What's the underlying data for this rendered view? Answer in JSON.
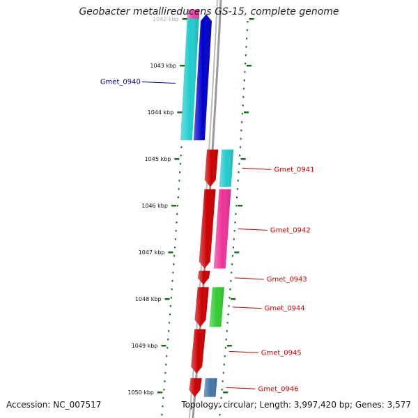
{
  "title": "Geobacter metallireducens GS-15, complete genome",
  "accession": "Accession: NC_007517",
  "summary": "Topology: circular; Length: 3,997,420 bp; Genes: 3,577",
  "ticks": [
    {
      "label": "1042 kbp",
      "kbp": 1042
    },
    {
      "label": "1043 kbp",
      "kbp": 1043
    },
    {
      "label": "1044 kbp",
      "kbp": 1044
    },
    {
      "label": "1045 kbp",
      "kbp": 1045
    },
    {
      "label": "1046 kbp",
      "kbp": 1046
    },
    {
      "label": "1047 kbp",
      "kbp": 1047
    },
    {
      "label": "1048 kbp",
      "kbp": 1048
    },
    {
      "label": "1049 kbp",
      "kbp": 1049
    },
    {
      "label": "1050 kbp",
      "kbp": 1050
    }
  ],
  "genes": [
    {
      "name": "Gmet_0940",
      "strand": "-",
      "start_kbp": 1044.6,
      "end_kbp": 1041.9,
      "color": "#0000cc"
    },
    {
      "name": "Gmet_0941",
      "strand": "+",
      "start_kbp": 1044.8,
      "end_kbp": 1045.6,
      "color": "#cc0000"
    },
    {
      "name": "Gmet_0942",
      "strand": "+",
      "start_kbp": 1045.65,
      "end_kbp": 1047.35,
      "color": "#cc0000"
    },
    {
      "name": "Gmet_0943",
      "strand": "+",
      "start_kbp": 1047.4,
      "end_kbp": 1047.7,
      "color": "#cc0000"
    },
    {
      "name": "Gmet_0944",
      "strand": "+",
      "start_kbp": 1047.75,
      "end_kbp": 1048.6,
      "color": "#cc0000"
    },
    {
      "name": "Gmet_0945",
      "strand": "+",
      "start_kbp": 1048.65,
      "end_kbp": 1049.6,
      "color": "#cc0000"
    },
    {
      "name": "Gmet_0946",
      "strand": "+",
      "start_kbp": 1049.7,
      "end_kbp": 1050.1,
      "color": "#cc0000"
    }
  ],
  "features": [
    {
      "strand": "-",
      "start_kbp": 1041.9,
      "end_kbp": 1044.6,
      "color": "#22cccc"
    },
    {
      "strand": "-",
      "start_kbp": 1041.8,
      "end_kbp": 1042.0,
      "color": "#ee44aa"
    },
    {
      "strand": "+",
      "start_kbp": 1044.8,
      "end_kbp": 1045.6,
      "color": "#22cccc"
    },
    {
      "strand": "+",
      "start_kbp": 1045.65,
      "end_kbp": 1047.35,
      "color": "#ee3399"
    },
    {
      "strand": "+",
      "start_kbp": 1047.75,
      "end_kbp": 1048.6,
      "color": "#33cc33"
    },
    {
      "strand": "+",
      "start_kbp": 1049.7,
      "end_kbp": 1050.1,
      "color": "#4477aa"
    }
  ],
  "colors": {
    "forward_label": "#cc0000",
    "reverse_label": "#000099",
    "tick": "#1a6b1a",
    "backbone": "#888888"
  }
}
